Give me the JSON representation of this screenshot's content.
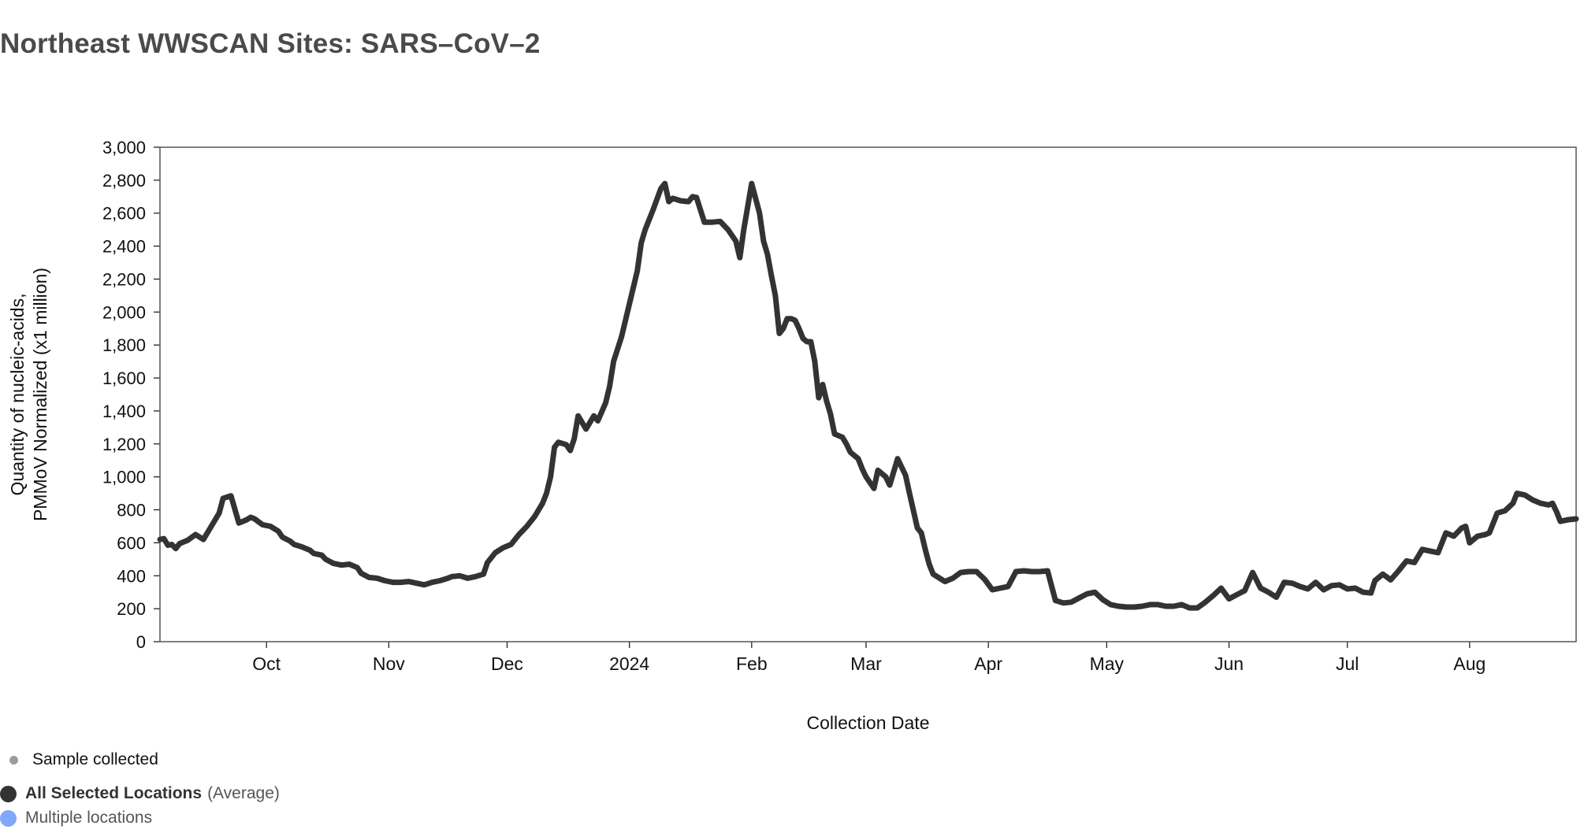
{
  "page": {
    "title": "Northeast WWSCAN Sites: SARS–CoV–2"
  },
  "legend": {
    "sample_label": "Sample collected",
    "average_label": "All Selected Locations",
    "average_suffix": "(Average)",
    "multiple_label": "Multiple locations"
  },
  "colors": {
    "line": "#333333",
    "sample_dot": "#9a9ba3",
    "average_dot": "#333333",
    "multiple_dot": "#7ea8f8",
    "axis": "#111111",
    "frame": "#555555"
  },
  "chart_data": {
    "type": "line",
    "title": "Northeast WWSCAN Sites: SARS–CoV–2",
    "xlabel": "Collection Date",
    "ylabel_lines": [
      "Quantity of nucleic-acids,",
      "PMMoV Normalized (x1 million)"
    ],
    "ylim": [
      0,
      3000
    ],
    "xlim": [
      "2023-09-04",
      "2024-08-28"
    ],
    "y_ticks": [
      0,
      200,
      400,
      600,
      800,
      1000,
      1200,
      1400,
      1600,
      1800,
      2000,
      2200,
      2400,
      2600,
      2800,
      3000
    ],
    "y_tick_labels": [
      "0",
      "200",
      "400",
      "600",
      "800",
      "1,000",
      "1,200",
      "1,400",
      "1,600",
      "1,800",
      "2,000",
      "2,200",
      "2,400",
      "2,600",
      "2,800",
      "3,000"
    ],
    "x_ticks": [
      {
        "date": "2023-10-01",
        "label": "Oct"
      },
      {
        "date": "2023-11-01",
        "label": "Nov"
      },
      {
        "date": "2023-12-01",
        "label": "Dec"
      },
      {
        "date": "2024-01-01",
        "label": "2024"
      },
      {
        "date": "2024-02-01",
        "label": "Feb"
      },
      {
        "date": "2024-03-01",
        "label": "Mar"
      },
      {
        "date": "2024-04-01",
        "label": "Apr"
      },
      {
        "date": "2024-05-01",
        "label": "May"
      },
      {
        "date": "2024-06-01",
        "label": "Jun"
      },
      {
        "date": "2024-07-01",
        "label": "Jul"
      },
      {
        "date": "2024-08-01",
        "label": "Aug"
      }
    ],
    "grid": false,
    "legend_position": "bottom-left",
    "series": [
      {
        "name": "All Selected Locations",
        "points": [
          [
            "2023-09-04",
            620
          ],
          [
            "2023-09-05",
            625
          ],
          [
            "2023-09-06",
            585
          ],
          [
            "2023-09-07",
            590
          ],
          [
            "2023-09-08",
            565
          ],
          [
            "2023-09-09",
            595
          ],
          [
            "2023-09-11",
            615
          ],
          [
            "2023-09-13",
            650
          ],
          [
            "2023-09-15",
            620
          ],
          [
            "2023-09-17",
            700
          ],
          [
            "2023-09-19",
            780
          ],
          [
            "2023-09-20",
            870
          ],
          [
            "2023-09-22",
            885
          ],
          [
            "2023-09-24",
            720
          ],
          [
            "2023-09-26",
            740
          ],
          [
            "2023-09-27",
            755
          ],
          [
            "2023-09-28",
            745
          ],
          [
            "2023-09-30",
            710
          ],
          [
            "2023-10-02",
            700
          ],
          [
            "2023-10-04",
            670
          ],
          [
            "2023-10-05",
            635
          ],
          [
            "2023-10-07",
            610
          ],
          [
            "2023-10-08",
            590
          ],
          [
            "2023-10-10",
            575
          ],
          [
            "2023-10-12",
            555
          ],
          [
            "2023-10-13",
            535
          ],
          [
            "2023-10-15",
            525
          ],
          [
            "2023-10-16",
            500
          ],
          [
            "2023-10-18",
            475
          ],
          [
            "2023-10-20",
            465
          ],
          [
            "2023-10-22",
            470
          ],
          [
            "2023-10-24",
            450
          ],
          [
            "2023-10-25",
            415
          ],
          [
            "2023-10-27",
            390
          ],
          [
            "2023-10-29",
            385
          ],
          [
            "2023-10-31",
            370
          ],
          [
            "2023-11-02",
            360
          ],
          [
            "2023-11-04",
            360
          ],
          [
            "2023-11-06",
            365
          ],
          [
            "2023-11-08",
            355
          ],
          [
            "2023-11-10",
            345
          ],
          [
            "2023-11-12",
            360
          ],
          [
            "2023-11-14",
            370
          ],
          [
            "2023-11-16",
            385
          ],
          [
            "2023-11-17",
            395
          ],
          [
            "2023-11-19",
            400
          ],
          [
            "2023-11-21",
            385
          ],
          [
            "2023-11-23",
            395
          ],
          [
            "2023-11-25",
            410
          ],
          [
            "2023-11-26",
            480
          ],
          [
            "2023-11-28",
            540
          ],
          [
            "2023-11-30",
            570
          ],
          [
            "2023-12-02",
            590
          ],
          [
            "2023-12-04",
            650
          ],
          [
            "2023-12-06",
            700
          ],
          [
            "2023-12-08",
            760
          ],
          [
            "2023-12-10",
            840
          ],
          [
            "2023-12-11",
            900
          ],
          [
            "2023-12-12",
            1000
          ],
          [
            "2023-12-13",
            1180
          ],
          [
            "2023-12-14",
            1210
          ],
          [
            "2023-12-16",
            1195
          ],
          [
            "2023-12-17",
            1160
          ],
          [
            "2023-12-18",
            1230
          ],
          [
            "2023-12-19",
            1370
          ],
          [
            "2023-12-20",
            1330
          ],
          [
            "2023-12-21",
            1290
          ],
          [
            "2023-12-23",
            1370
          ],
          [
            "2023-12-24",
            1340
          ],
          [
            "2023-12-26",
            1450
          ],
          [
            "2023-12-27",
            1550
          ],
          [
            "2023-12-28",
            1700
          ],
          [
            "2023-12-30",
            1850
          ],
          [
            "2024-01-01",
            2050
          ],
          [
            "2024-01-03",
            2250
          ],
          [
            "2024-01-04",
            2420
          ],
          [
            "2024-01-05",
            2500
          ],
          [
            "2024-01-07",
            2620
          ],
          [
            "2024-01-09",
            2750
          ],
          [
            "2024-01-10",
            2780
          ],
          [
            "2024-01-11",
            2670
          ],
          [
            "2024-01-12",
            2690
          ],
          [
            "2024-01-14",
            2675
          ],
          [
            "2024-01-16",
            2670
          ],
          [
            "2024-01-17",
            2700
          ],
          [
            "2024-01-18",
            2695
          ],
          [
            "2024-01-20",
            2545
          ],
          [
            "2024-01-22",
            2545
          ],
          [
            "2024-01-24",
            2550
          ],
          [
            "2024-01-26",
            2500
          ],
          [
            "2024-01-28",
            2430
          ],
          [
            "2024-01-29",
            2330
          ],
          [
            "2024-01-30",
            2500
          ],
          [
            "2024-02-01",
            2780
          ],
          [
            "2024-02-03",
            2600
          ],
          [
            "2024-02-04",
            2430
          ],
          [
            "2024-02-05",
            2350
          ],
          [
            "2024-02-06",
            2220
          ],
          [
            "2024-02-07",
            2100
          ],
          [
            "2024-02-08",
            1870
          ],
          [
            "2024-02-09",
            1900
          ],
          [
            "2024-02-10",
            1960
          ],
          [
            "2024-02-11",
            1960
          ],
          [
            "2024-02-12",
            1950
          ],
          [
            "2024-02-13",
            1900
          ],
          [
            "2024-02-14",
            1840
          ],
          [
            "2024-02-15",
            1820
          ],
          [
            "2024-02-16",
            1820
          ],
          [
            "2024-02-17",
            1700
          ],
          [
            "2024-02-18",
            1480
          ],
          [
            "2024-02-19",
            1560
          ],
          [
            "2024-02-20",
            1460
          ],
          [
            "2024-02-21",
            1380
          ],
          [
            "2024-02-22",
            1260
          ],
          [
            "2024-02-24",
            1240
          ],
          [
            "2024-02-25",
            1200
          ],
          [
            "2024-02-26",
            1150
          ],
          [
            "2024-02-28",
            1110
          ],
          [
            "2024-02-29",
            1050
          ],
          [
            "2024-03-01",
            1000
          ],
          [
            "2024-03-03",
            930
          ],
          [
            "2024-03-04",
            1040
          ],
          [
            "2024-03-06",
            1000
          ],
          [
            "2024-03-07",
            950
          ],
          [
            "2024-03-09",
            1110
          ],
          [
            "2024-03-11",
            1010
          ],
          [
            "2024-03-12",
            900
          ],
          [
            "2024-03-14",
            690
          ],
          [
            "2024-03-15",
            660
          ],
          [
            "2024-03-16",
            560
          ],
          [
            "2024-03-17",
            470
          ],
          [
            "2024-03-18",
            410
          ],
          [
            "2024-03-20",
            380
          ],
          [
            "2024-03-21",
            365
          ],
          [
            "2024-03-23",
            385
          ],
          [
            "2024-03-25",
            420
          ],
          [
            "2024-03-27",
            425
          ],
          [
            "2024-03-29",
            425
          ],
          [
            "2024-03-31",
            380
          ],
          [
            "2024-04-02",
            315
          ],
          [
            "2024-04-04",
            325
          ],
          [
            "2024-04-06",
            335
          ],
          [
            "2024-04-08",
            425
          ],
          [
            "2024-04-10",
            430
          ],
          [
            "2024-04-12",
            425
          ],
          [
            "2024-04-14",
            425
          ],
          [
            "2024-04-16",
            430
          ],
          [
            "2024-04-18",
            250
          ],
          [
            "2024-04-20",
            235
          ],
          [
            "2024-04-22",
            240
          ],
          [
            "2024-04-24",
            265
          ],
          [
            "2024-04-26",
            290
          ],
          [
            "2024-04-28",
            300
          ],
          [
            "2024-04-30",
            255
          ],
          [
            "2024-05-02",
            225
          ],
          [
            "2024-05-04",
            215
          ],
          [
            "2024-05-06",
            210
          ],
          [
            "2024-05-08",
            210
          ],
          [
            "2024-05-10",
            215
          ],
          [
            "2024-05-12",
            225
          ],
          [
            "2024-05-14",
            225
          ],
          [
            "2024-05-16",
            215
          ],
          [
            "2024-05-18",
            215
          ],
          [
            "2024-05-20",
            225
          ],
          [
            "2024-05-22",
            205
          ],
          [
            "2024-05-24",
            205
          ],
          [
            "2024-05-26",
            240
          ],
          [
            "2024-05-28",
            280
          ],
          [
            "2024-05-30",
            325
          ],
          [
            "2024-06-01",
            260
          ],
          [
            "2024-06-03",
            285
          ],
          [
            "2024-06-05",
            310
          ],
          [
            "2024-06-07",
            420
          ],
          [
            "2024-06-09",
            325
          ],
          [
            "2024-06-11",
            300
          ],
          [
            "2024-06-13",
            270
          ],
          [
            "2024-06-15",
            360
          ],
          [
            "2024-06-17",
            355
          ],
          [
            "2024-06-19",
            335
          ],
          [
            "2024-06-21",
            320
          ],
          [
            "2024-06-23",
            360
          ],
          [
            "2024-06-25",
            315
          ],
          [
            "2024-06-27",
            340
          ],
          [
            "2024-06-29",
            345
          ],
          [
            "2024-07-01",
            320
          ],
          [
            "2024-07-03",
            325
          ],
          [
            "2024-07-05",
            300
          ],
          [
            "2024-07-07",
            295
          ],
          [
            "2024-07-08",
            370
          ],
          [
            "2024-07-10",
            410
          ],
          [
            "2024-07-12",
            375
          ],
          [
            "2024-07-14",
            430
          ],
          [
            "2024-07-16",
            490
          ],
          [
            "2024-07-18",
            480
          ],
          [
            "2024-07-20",
            560
          ],
          [
            "2024-07-22",
            550
          ],
          [
            "2024-07-24",
            540
          ],
          [
            "2024-07-26",
            660
          ],
          [
            "2024-07-28",
            640
          ],
          [
            "2024-07-30",
            690
          ],
          [
            "2024-07-31",
            700
          ],
          [
            "2024-08-01",
            600
          ],
          [
            "2024-08-03",
            640
          ],
          [
            "2024-08-05",
            650
          ],
          [
            "2024-08-06",
            660
          ],
          [
            "2024-08-08",
            780
          ],
          [
            "2024-08-10",
            795
          ],
          [
            "2024-08-12",
            840
          ],
          [
            "2024-08-13",
            900
          ],
          [
            "2024-08-15",
            890
          ],
          [
            "2024-08-17",
            860
          ],
          [
            "2024-08-19",
            840
          ],
          [
            "2024-08-21",
            830
          ],
          [
            "2024-08-22",
            840
          ],
          [
            "2024-08-23",
            790
          ],
          [
            "2024-08-24",
            730
          ],
          [
            "2024-08-26",
            740
          ],
          [
            "2024-08-28",
            745
          ]
        ]
      }
    ]
  }
}
